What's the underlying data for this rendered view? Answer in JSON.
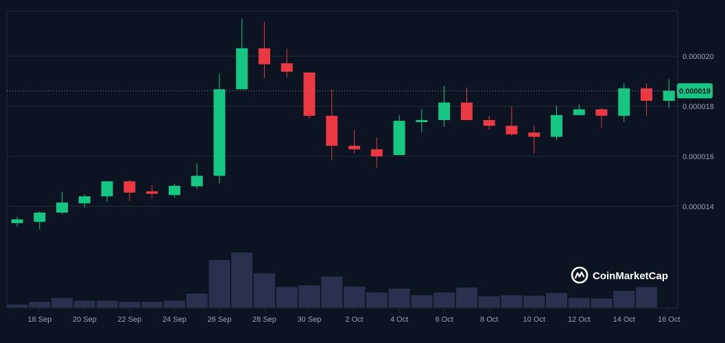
{
  "chart_data": {
    "type": "candlestick",
    "title": "",
    "xlabel": "",
    "ylabel": "",
    "y_ticks": [
      "0.000014",
      "0.000016",
      "0.000018",
      "0.000020"
    ],
    "y_tick_values": [
      1.4e-05,
      1.6e-05,
      1.8e-05,
      2e-05
    ],
    "ylim": [
      1.265e-05,
      2.225e-05
    ],
    "x_tick_labels": [
      "18 Sep",
      "20 Sep",
      "22 Sep",
      "24 Sep",
      "26 Sep",
      "28 Sep",
      "30 Sep",
      "2 Oct",
      "4 Oct",
      "6 Oct",
      "8 Oct",
      "10 Oct",
      "12 Oct",
      "14 Oct",
      "16 Oct"
    ],
    "current_price_label": "0.000019",
    "current_price": 1.862e-05,
    "grid": true,
    "colors": {
      "up": "#16c784",
      "down": "#ea3943",
      "volume": "#28324f",
      "grid": "#232b3a",
      "badge": "#16c784"
    },
    "candles": [
      {
        "date": "17 Sep",
        "open": 1.333e-05,
        "high": 1.358e-05,
        "low": 1.318e-05,
        "close": 1.348e-05
      },
      {
        "date": "18 Sep",
        "open": 1.338e-05,
        "high": 1.38e-05,
        "low": 1.308e-05,
        "close": 1.375e-05
      },
      {
        "date": "19 Sep",
        "open": 1.375e-05,
        "high": 1.458e-05,
        "low": 1.368e-05,
        "close": 1.415e-05
      },
      {
        "date": "20 Sep",
        "open": 1.412e-05,
        "high": 1.448e-05,
        "low": 1.395e-05,
        "close": 1.44e-05
      },
      {
        "date": "21 Sep",
        "open": 1.44e-05,
        "high": 1.5e-05,
        "low": 1.418e-05,
        "close": 1.5e-05
      },
      {
        "date": "22 Sep",
        "open": 1.5e-05,
        "high": 1.505e-05,
        "low": 1.422e-05,
        "close": 1.455e-05
      },
      {
        "date": "23 Sep",
        "open": 1.46e-05,
        "high": 1.485e-05,
        "low": 1.432e-05,
        "close": 1.45e-05
      },
      {
        "date": "24 Sep",
        "open": 1.445e-05,
        "high": 1.49e-05,
        "low": 1.435e-05,
        "close": 1.482e-05
      },
      {
        "date": "25 Sep",
        "open": 1.48e-05,
        "high": 1.572e-05,
        "low": 1.47e-05,
        "close": 1.522e-05
      },
      {
        "date": "26 Sep",
        "open": 1.522e-05,
        "high": 1.93e-05,
        "low": 1.492e-05,
        "close": 1.868e-05
      },
      {
        "date": "27 Sep",
        "open": 1.868e-05,
        "high": 2.15e-05,
        "low": 1.868e-05,
        "close": 2.032e-05
      },
      {
        "date": "28 Sep",
        "open": 2.032e-05,
        "high": 2.138e-05,
        "low": 1.912e-05,
        "close": 1.968e-05
      },
      {
        "date": "29 Sep",
        "open": 1.972e-05,
        "high": 2.03e-05,
        "low": 1.915e-05,
        "close": 1.938e-05
      },
      {
        "date": "30 Sep",
        "open": 1.935e-05,
        "high": 1.935e-05,
        "low": 1.752e-05,
        "close": 1.762e-05
      },
      {
        "date": "1 Oct",
        "open": 1.762e-05,
        "high": 1.868e-05,
        "low": 1.585e-05,
        "close": 1.642e-05
      },
      {
        "date": "2 Oct",
        "open": 1.642e-05,
        "high": 1.705e-05,
        "low": 1.612e-05,
        "close": 1.628e-05
      },
      {
        "date": "3 Oct",
        "open": 1.628e-05,
        "high": 1.675e-05,
        "low": 1.555e-05,
        "close": 1.6e-05
      },
      {
        "date": "4 Oct",
        "open": 1.605e-05,
        "high": 1.765e-05,
        "low": 1.605e-05,
        "close": 1.742e-05
      },
      {
        "date": "5 Oct",
        "open": 1.738e-05,
        "high": 1.79e-05,
        "low": 1.695e-05,
        "close": 1.745e-05
      },
      {
        "date": "6 Oct",
        "open": 1.745e-05,
        "high": 1.882e-05,
        "low": 1.718e-05,
        "close": 1.815e-05
      },
      {
        "date": "7 Oct",
        "open": 1.815e-05,
        "high": 1.875e-05,
        "low": 1.745e-05,
        "close": 1.745e-05
      },
      {
        "date": "8 Oct",
        "open": 1.745e-05,
        "high": 1.762e-05,
        "low": 1.705e-05,
        "close": 1.722e-05
      },
      {
        "date": "9 Oct",
        "open": 1.722e-05,
        "high": 1.8e-05,
        "low": 1.682e-05,
        "close": 1.688e-05
      },
      {
        "date": "10 Oct",
        "open": 1.695e-05,
        "high": 1.722e-05,
        "low": 1.612e-05,
        "close": 1.678e-05
      },
      {
        "date": "11 Oct",
        "open": 1.678e-05,
        "high": 1.802e-05,
        "low": 1.665e-05,
        "close": 1.765e-05
      },
      {
        "date": "12 Oct",
        "open": 1.765e-05,
        "high": 1.808e-05,
        "low": 1.762e-05,
        "close": 1.788e-05
      },
      {
        "date": "13 Oct",
        "open": 1.788e-05,
        "high": 1.792e-05,
        "low": 1.715e-05,
        "close": 1.762e-05
      },
      {
        "date": "14 Oct",
        "open": 1.762e-05,
        "high": 1.892e-05,
        "low": 1.738e-05,
        "close": 1.872e-05
      },
      {
        "date": "15 Oct",
        "open": 1.872e-05,
        "high": 1.892e-05,
        "low": 1.762e-05,
        "close": 1.822e-05
      },
      {
        "date": "16 Oct",
        "open": 1.822e-05,
        "high": 1.908e-05,
        "low": 1.795e-05,
        "close": 1.862e-05
      }
    ],
    "volume_relative": [
      0.05,
      0.1,
      0.17,
      0.12,
      0.12,
      0.1,
      0.1,
      0.12,
      0.25,
      0.86,
      1.0,
      0.62,
      0.37,
      0.4,
      0.56,
      0.38,
      0.27,
      0.34,
      0.22,
      0.27,
      0.36,
      0.2,
      0.22,
      0.21,
      0.26,
      0.17,
      0.16,
      0.3,
      0.37,
      0.0
    ],
    "watermark": "CoinMarketCap"
  }
}
